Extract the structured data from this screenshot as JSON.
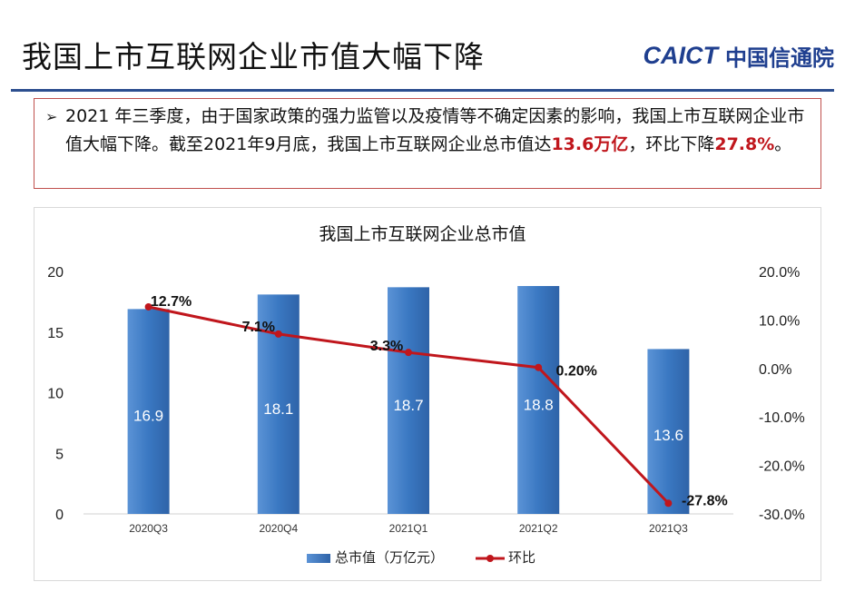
{
  "slide": {
    "title": "我国上市互联网企业市值大幅下降",
    "logo_en": "CAICT",
    "logo_cn": "中国信通院"
  },
  "callout": {
    "bullet_icon": "arrow-right-icon",
    "text_1": "2021 年三季度，由于国家政策的强力监管以及疫情等不确定因素的影响，我国上市互联网企业市值大幅下降。截至2021年9月底，我国上市互联网企业总市值达",
    "value_highlight": "13.6万亿",
    "text_2": "，环比下降",
    "pct_highlight": "27.8%",
    "text_3": "。"
  },
  "colors": {
    "bar": "#3a78c2",
    "line": "#c0161c",
    "highlight": "#c0161c",
    "brand": "#1f3f8f"
  },
  "chart_data": {
    "type": "bar",
    "title": "我国上市互联网企业总市值",
    "categories": [
      "2020Q3",
      "2020Q4",
      "2021Q1",
      "2021Q2",
      "2021Q3"
    ],
    "series": [
      {
        "name": "总市值（万亿元）",
        "type": "bar",
        "axis": "left",
        "values": [
          16.9,
          18.1,
          18.7,
          18.8,
          13.6
        ],
        "labels": [
          "16.9",
          "18.1",
          "18.7",
          "18.8",
          "13.6"
        ]
      },
      {
        "name": "环比",
        "type": "line",
        "axis": "right",
        "values": [
          12.7,
          7.1,
          3.3,
          0.2,
          -27.8
        ],
        "labels": [
          "12.7%",
          "7.1%",
          "3.3%",
          "0.20%",
          "-27.8%"
        ]
      }
    ],
    "left_axis": {
      "ylim": [
        0,
        20
      ],
      "ticks": [
        "0",
        "5",
        "10",
        "15",
        "20"
      ]
    },
    "right_axis": {
      "ylim": [
        -30,
        20
      ],
      "ticks": [
        "-30.0%",
        "-20.0%",
        "-10.0%",
        "0.0%",
        "10.0%",
        "20.0%"
      ]
    },
    "legend": {
      "position": "bottom",
      "items": [
        "总市值（万亿元）",
        "环比"
      ]
    },
    "grid": false
  }
}
